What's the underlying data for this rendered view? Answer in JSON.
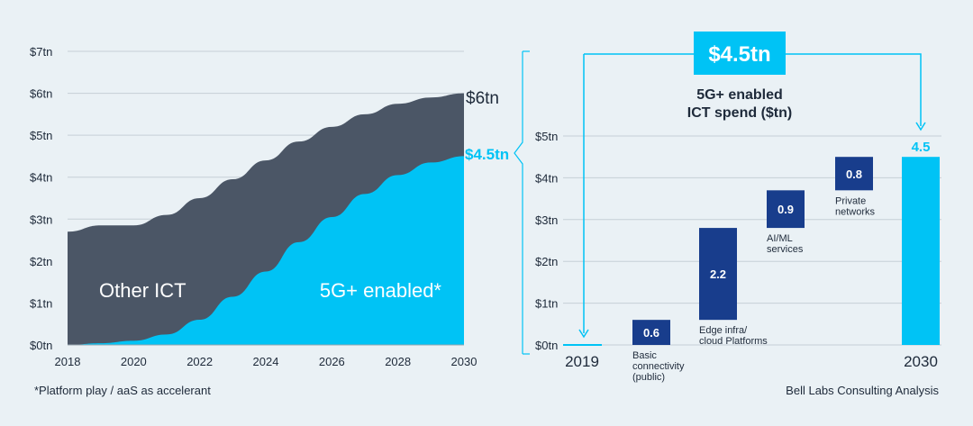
{
  "footnote": "*Platform play / aaS as accelerant",
  "source": "Bell Labs Consulting Analysis",
  "colors": {
    "background": "#eaf1f5",
    "other_ict": "#4b5666",
    "fiveg": "#00c3f5",
    "bar_dark": "#183d8c",
    "text": "#1e2a3a",
    "grid": "#c6cfd6"
  },
  "chart_data": [
    {
      "type": "area",
      "ylim": [
        0,
        7
      ],
      "yticks": [
        "$0tn",
        "$1tn",
        "$2tn",
        "$3tn",
        "$4tn",
        "$5tn",
        "$6tn",
        "$7tn"
      ],
      "xticks": [
        "2018",
        "2020",
        "2022",
        "2024",
        "2026",
        "2028",
        "2030"
      ],
      "x": [
        2018,
        2019,
        2020,
        2021,
        2022,
        2023,
        2024,
        2025,
        2026,
        2027,
        2028,
        2029,
        2030
      ],
      "series": [
        {
          "name": "Other ICT",
          "label": "Other ICT",
          "values": [
            2.7,
            2.85,
            2.85,
            3.1,
            3.5,
            3.95,
            4.4,
            4.85,
            5.2,
            5.5,
            5.75,
            5.9,
            6.0
          ]
        },
        {
          "name": "5G+ enabled",
          "label": "5G+ enabled*",
          "values": [
            0,
            0.04,
            0.1,
            0.25,
            0.6,
            1.15,
            1.75,
            2.45,
            3.05,
            3.6,
            4.05,
            4.35,
            4.5
          ]
        }
      ],
      "end_labels": {
        "total": "$6tn",
        "fiveg": "$4.5tn"
      }
    },
    {
      "type": "bar",
      "title": "5G+ enabled\nICT spend ($tn)",
      "title_line1": "5G+ enabled",
      "title_line2": "ICT spend ($tn)",
      "headline": "$4.5tn",
      "ylim": [
        0,
        5
      ],
      "yticks": [
        "$0tn",
        "$1tn",
        "$2tn",
        "$3tn",
        "$4tn",
        "$5tn"
      ],
      "start_label": "2019",
      "end_label": "2030",
      "steps": [
        {
          "name": "Basic connectivity (public)",
          "lines": [
            "Basic",
            "connectivity",
            "(public)"
          ],
          "value": 0.6,
          "value_label": "0.6",
          "start": 0
        },
        {
          "name": "Edge infra/ cloud Platforms",
          "lines": [
            "Edge infra/",
            "cloud Platforms"
          ],
          "value": 2.2,
          "value_label": "2.2",
          "start": 0.6
        },
        {
          "name": "AI/ML services",
          "lines": [
            "AI/ML",
            "services"
          ],
          "value": 0.9,
          "value_label": "0.9",
          "start": 2.8
        },
        {
          "name": "Private networks",
          "lines": [
            "Private",
            "networks"
          ],
          "value": 0.8,
          "value_label": "0.8",
          "start": 3.7
        }
      ],
      "total": {
        "value": 4.5,
        "value_label": "4.5"
      }
    }
  ]
}
